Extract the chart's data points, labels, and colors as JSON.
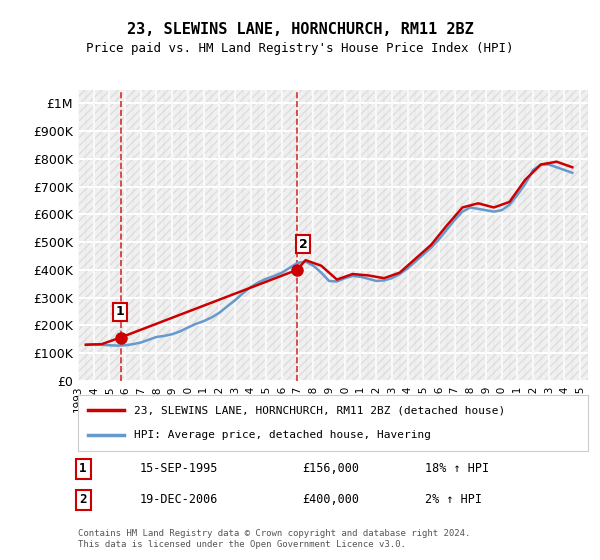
{
  "title": "23, SLEWINS LANE, HORNCHURCH, RM11 2BZ",
  "subtitle": "Price paid vs. HM Land Registry's House Price Index (HPI)",
  "ylabel": "",
  "ylim": [
    0,
    1050000
  ],
  "yticks": [
    0,
    100000,
    200000,
    300000,
    400000,
    500000,
    600000,
    700000,
    800000,
    900000,
    1000000
  ],
  "ytick_labels": [
    "£0",
    "£100K",
    "£200K",
    "£300K",
    "£400K",
    "£500K",
    "£600K",
    "£700K",
    "£800K",
    "£900K",
    "£1M"
  ],
  "sale1_date": 1995.71,
  "sale1_price": 156000,
  "sale1_label": "1",
  "sale1_text": "15-SEP-1995",
  "sale1_amount": "£156,000",
  "sale1_hpi": "18% ↑ HPI",
  "sale2_date": 2006.96,
  "sale2_price": 400000,
  "sale2_label": "2",
  "sale2_text": "19-DEC-2006",
  "sale2_amount": "£400,000",
  "sale2_hpi": "2% ↑ HPI",
  "line1_color": "#cc0000",
  "line2_color": "#6699cc",
  "vline_color": "#cc0000",
  "background_color": "#ffffff",
  "plot_bg_color": "#f5f5f5",
  "grid_color": "#ffffff",
  "legend1_label": "23, SLEWINS LANE, HORNCHURCH, RM11 2BZ (detached house)",
  "legend2_label": "HPI: Average price, detached house, Havering",
  "footer": "Contains HM Land Registry data © Crown copyright and database right 2024.\nThis data is licensed under the Open Government Licence v3.0.",
  "hpi_data": {
    "years": [
      1993.5,
      1994,
      1994.5,
      1995,
      1995.5,
      1996,
      1996.5,
      1997,
      1997.5,
      1998,
      1998.5,
      1999,
      1999.5,
      2000,
      2000.5,
      2001,
      2001.5,
      2002,
      2002.5,
      2003,
      2003.5,
      2004,
      2004.5,
      2005,
      2005.5,
      2006,
      2006.5,
      2007,
      2007.5,
      2008,
      2008.5,
      2009,
      2009.5,
      2010,
      2010.5,
      2011,
      2011.5,
      2012,
      2012.5,
      2013,
      2013.5,
      2014,
      2014.5,
      2015,
      2015.5,
      2016,
      2016.5,
      2017,
      2017.5,
      2018,
      2018.5,
      2019,
      2019.5,
      2020,
      2020.5,
      2021,
      2021.5,
      2022,
      2022.5,
      2023,
      2023.5,
      2024,
      2024.5
    ],
    "values": [
      130000,
      132000,
      130000,
      128000,
      127000,
      128000,
      132000,
      138000,
      148000,
      158000,
      162000,
      168000,
      178000,
      192000,
      205000,
      215000,
      228000,
      245000,
      268000,
      290000,
      315000,
      338000,
      355000,
      368000,
      378000,
      390000,
      408000,
      425000,
      430000,
      415000,
      390000,
      360000,
      358000,
      370000,
      378000,
      375000,
      368000,
      360000,
      362000,
      370000,
      385000,
      405000,
      430000,
      455000,
      480000,
      510000,
      545000,
      580000,
      610000,
      625000,
      620000,
      615000,
      610000,
      615000,
      635000,
      670000,
      710000,
      760000,
      780000,
      780000,
      770000,
      760000,
      750000
    ]
  },
  "price_data": {
    "years": [
      1993.5,
      1994.5,
      1995.71,
      2006.96,
      2007.5,
      2008.5,
      2009.5,
      2010.5,
      2011.5,
      2012.5,
      2013.5,
      2014.5,
      2015.5,
      2016.5,
      2017.5,
      2018.5,
      2019.5,
      2020.5,
      2021.5,
      2022.5,
      2023.5,
      2024.5
    ],
    "values": [
      130000,
      132000,
      156000,
      400000,
      435000,
      415000,
      365000,
      385000,
      380000,
      370000,
      390000,
      440000,
      490000,
      560000,
      625000,
      640000,
      625000,
      645000,
      725000,
      780000,
      790000,
      770000
    ]
  }
}
